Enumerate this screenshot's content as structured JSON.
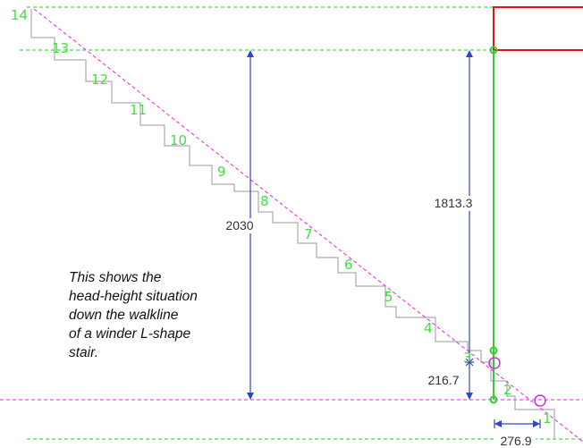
{
  "steps": [
    "1",
    "2",
    "3",
    "4",
    "5",
    "6",
    "7",
    "8",
    "9",
    "10",
    "11",
    "12",
    "13",
    "14"
  ],
  "dimensions": {
    "head_height": "2030",
    "clearance_to_beam": "1813.3",
    "riser_height": "216.7",
    "going": "276.9"
  },
  "note": {
    "lines": [
      "This shows the",
      "head-height situation",
      "down the walkline",
      "of a winder L-shape",
      "stair."
    ]
  },
  "colors": {
    "stair_outline": "#9a9a9a",
    "step_numbers": "#44dd44",
    "guide_lines": "#22cc22",
    "pitch_line": "#ee22ee",
    "dimension_lines": "#3344cc",
    "beam_outline": "#ee1111",
    "vertical_post": "#33cc33",
    "markers": "#cc33cc"
  }
}
